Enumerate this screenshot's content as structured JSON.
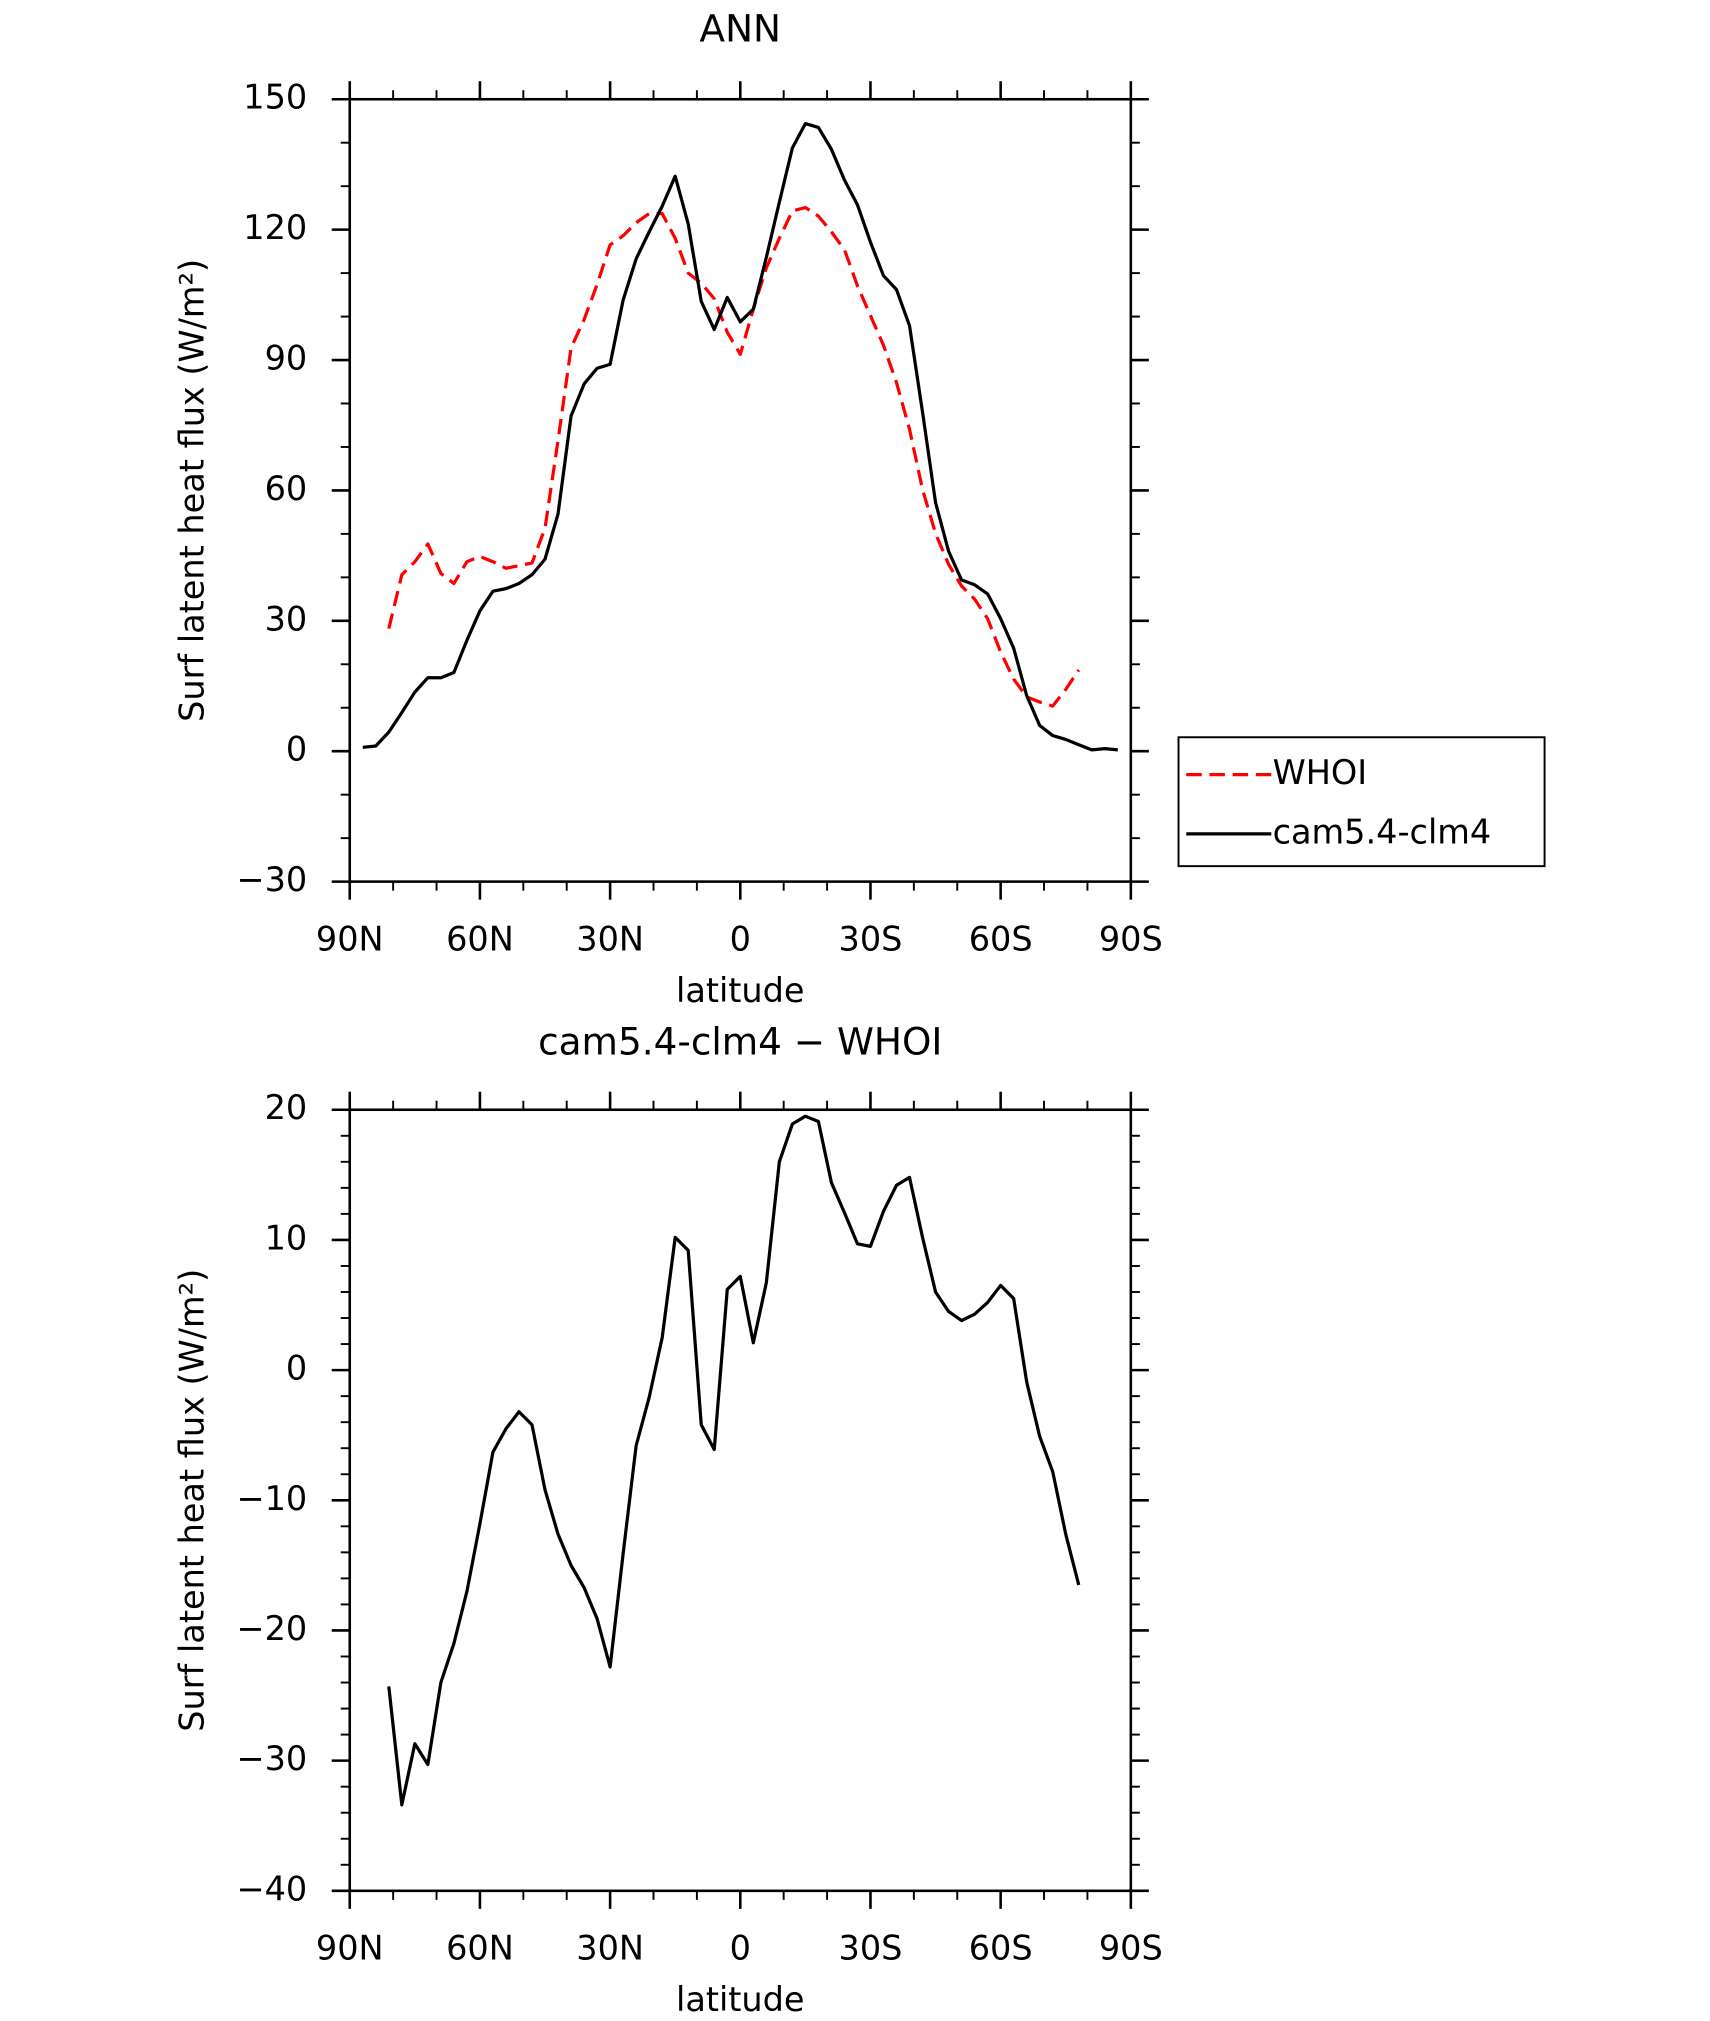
{
  "chart_data": [
    {
      "type": "line",
      "title": "ANN",
      "xlabel": "latitude",
      "ylabel": "Surf latent heat flux (W/m²)",
      "x": [
        87,
        84,
        81,
        78,
        75,
        72,
        69,
        66,
        63,
        60,
        57,
        54,
        51,
        48,
        45,
        42,
        39,
        36,
        33,
        30,
        27,
        24,
        21,
        18,
        15,
        12,
        9,
        6,
        3,
        0,
        -3,
        -6,
        -9,
        -12,
        -15,
        -18,
        -21,
        -24,
        -27,
        -30,
        -33,
        -36,
        -39,
        -42,
        -45,
        -48,
        -51,
        -54,
        -57,
        -60,
        -63,
        -66,
        -69,
        -72,
        -75,
        -78,
        -81,
        -84,
        -87
      ],
      "xlim": [
        90,
        -90
      ],
      "xticks": [
        {
          "value": 90,
          "label": "90N"
        },
        {
          "value": 60,
          "label": "60N"
        },
        {
          "value": 30,
          "label": "30N"
        },
        0,
        {
          "value": -30,
          "label": "30S"
        },
        {
          "value": -60,
          "label": "60S"
        },
        {
          "value": -90,
          "label": "90S"
        }
      ],
      "ylim": [
        -30,
        150
      ],
      "yticks": [
        {
          "value": -30,
          "label": "−30"
        },
        0,
        30,
        60,
        90,
        120,
        150
      ],
      "legend": "right",
      "series": [
        {
          "name": "WHOI",
          "color": "#ff0000",
          "style": "dashed",
          "values": [
            null,
            null,
            28.2,
            40.6,
            43.6,
            47.7,
            40.9,
            38.6,
            43.6,
            44.8,
            43.6,
            42.1,
            42.7,
            43.3,
            51.3,
            71.5,
            92.8,
            99.3,
            107.4,
            116.5,
            118.6,
            121.6,
            123.7,
            123.7,
            118.0,
            110.0,
            107.7,
            104.1,
            96.4,
            91.3,
            101.7,
            111.2,
            118.0,
            124.3,
            125.1,
            123.1,
            119.5,
            115.4,
            107.1,
            100.2,
            93.4,
            84.8,
            74.1,
            60.2,
            50.1,
            43.0,
            38.0,
            35.0,
            30.5,
            22.8,
            16.6,
            12.5,
            11.3,
            10.4,
            14.2,
            18.7,
            null,
            null,
            null
          ]
        },
        {
          "name": "cam5.4-clm4",
          "color": "#000000",
          "style": "solid",
          "values": [
            0.9,
            1.2,
            4.4,
            8.9,
            13.6,
            16.9,
            16.9,
            18.1,
            25.5,
            32.3,
            36.8,
            37.4,
            38.6,
            40.6,
            44.2,
            54.6,
            77.1,
            84.5,
            88.1,
            89.0,
            103.8,
            113.3,
            119.5,
            125.4,
            132.3,
            121.3,
            103.5,
            97.0,
            104.4,
            98.8,
            101.7,
            113.6,
            126.3,
            138.8,
            144.4,
            143.5,
            138.5,
            131.4,
            125.7,
            117.1,
            109.4,
            106.2,
            97.9,
            78.0,
            57.2,
            46.0,
            39.4,
            38.3,
            36.2,
            30.5,
            23.7,
            12.8,
            5.9,
            3.6,
            2.7,
            1.5,
            0.3,
            0.6,
            0.3
          ]
        }
      ]
    },
    {
      "type": "line",
      "title": "cam5.4-clm4 − WHOI",
      "xlabel": "latitude",
      "ylabel": "Surf latent heat flux (W/m²)",
      "x": [
        87,
        84,
        81,
        78,
        75,
        72,
        69,
        66,
        63,
        60,
        57,
        54,
        51,
        48,
        45,
        42,
        39,
        36,
        33,
        30,
        27,
        24,
        21,
        18,
        15,
        12,
        9,
        6,
        3,
        0,
        -3,
        -6,
        -9,
        -12,
        -15,
        -18,
        -21,
        -24,
        -27,
        -30,
        -33,
        -36,
        -39,
        -42,
        -45,
        -48,
        -51,
        -54,
        -57,
        -60,
        -63,
        -66,
        -69,
        -72,
        -75,
        -78,
        -81,
        -84,
        -87
      ],
      "xlim": [
        90,
        -90
      ],
      "xticks": [
        {
          "value": 90,
          "label": "90N"
        },
        {
          "value": 60,
          "label": "60N"
        },
        {
          "value": 30,
          "label": "30N"
        },
        0,
        {
          "value": -30,
          "label": "30S"
        },
        {
          "value": -60,
          "label": "60S"
        },
        {
          "value": -90,
          "label": "90S"
        }
      ],
      "ylim": [
        -40,
        20
      ],
      "yticks": [
        {
          "value": -40,
          "label": "−40"
        },
        {
          "value": -30,
          "label": "−30"
        },
        {
          "value": -20,
          "label": "−20"
        },
        {
          "value": -10,
          "label": "−10"
        },
        0,
        10,
        20
      ],
      "series": [
        {
          "color": "#000000",
          "style": "solid",
          "values": [
            null,
            null,
            -24.3,
            -33.4,
            -28.7,
            -30.3,
            -24.0,
            -21.0,
            -17.0,
            -11.8,
            -6.3,
            -4.5,
            -3.2,
            -4.2,
            -9.2,
            -12.6,
            -15.0,
            -16.7,
            -19.1,
            -22.8,
            -14.1,
            -5.8,
            -2.1,
            2.5,
            10.2,
            9.2,
            -4.2,
            -6.1,
            6.2,
            7.2,
            2.1,
            6.7,
            16.0,
            18.9,
            19.5,
            19.1,
            14.4,
            12.1,
            9.7,
            9.5,
            12.2,
            14.2,
            14.8,
            10.2,
            6.0,
            4.5,
            3.8,
            4.3,
            5.2,
            6.5,
            5.5,
            -0.9,
            -5.1,
            -7.8,
            -12.6,
            -16.5,
            null,
            null,
            null
          ]
        }
      ]
    }
  ]
}
